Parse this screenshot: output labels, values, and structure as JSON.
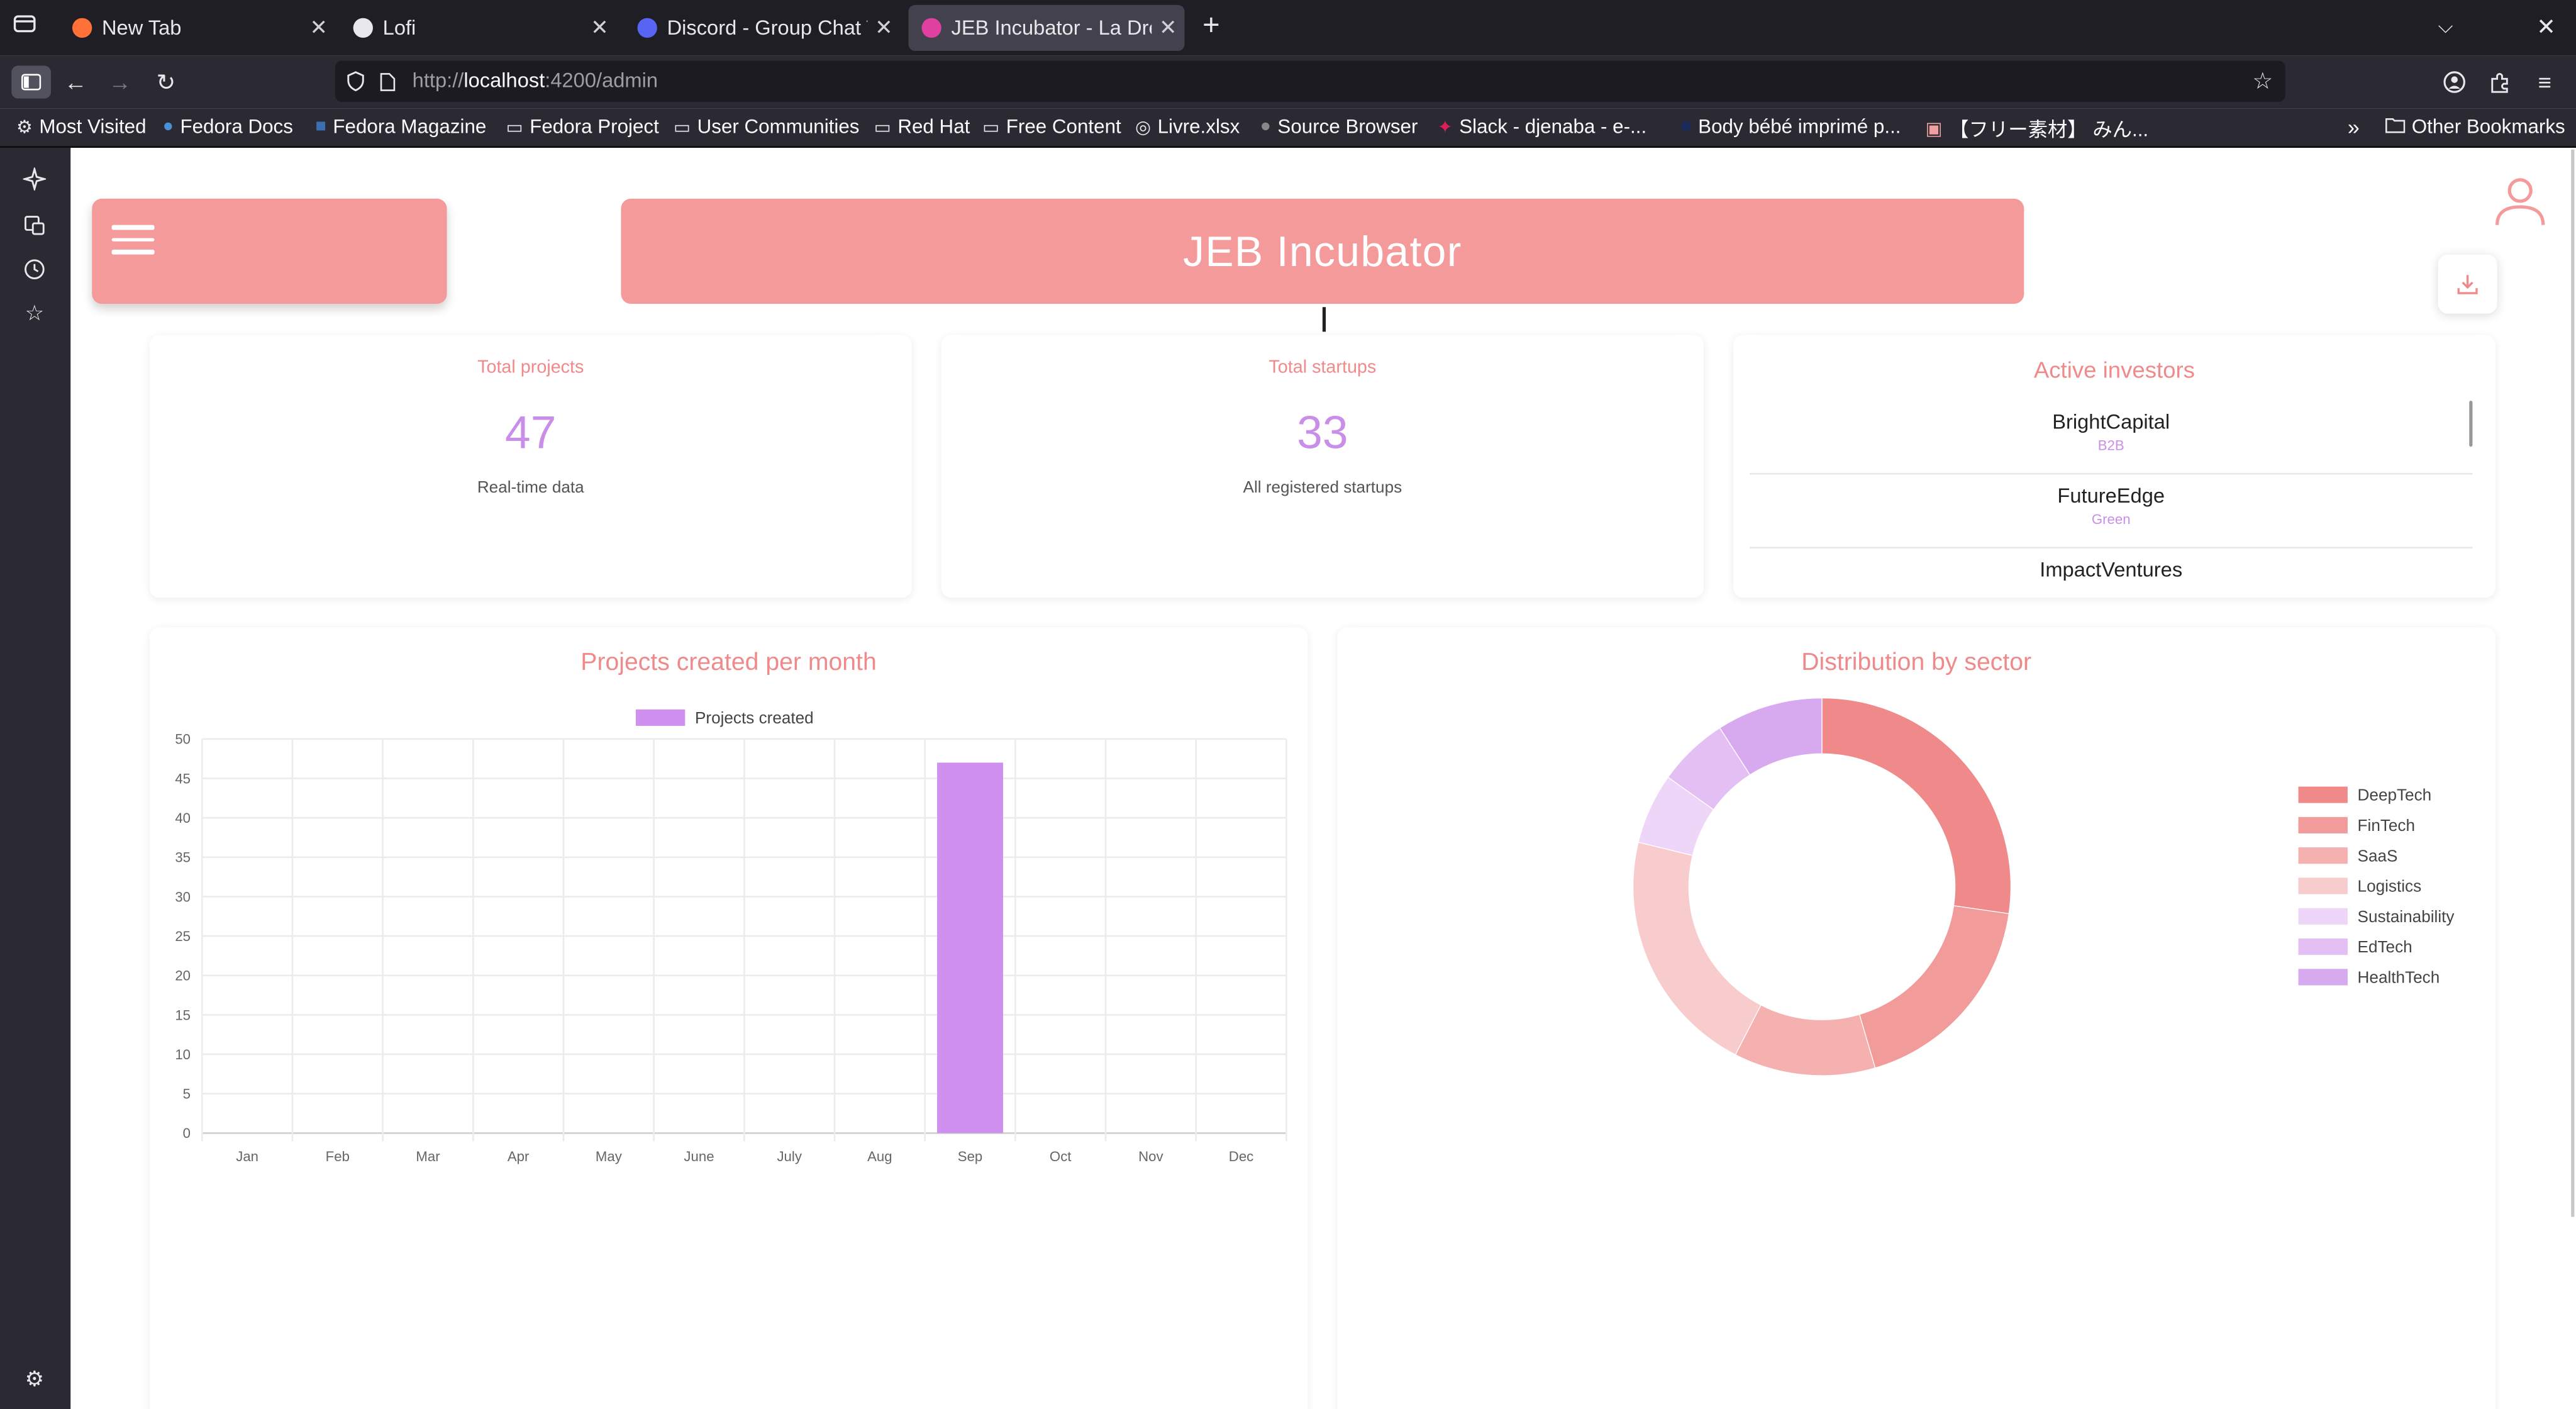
{
  "browser": {
    "tabs": [
      {
        "title": "New Tab",
        "active": false,
        "favicon_color": "#ff7139"
      },
      {
        "title": "Lofi",
        "active": false,
        "favicon_color": "#e8e8ec"
      },
      {
        "title": "Discord - Group Chat Th",
        "active": false,
        "favicon_color": "#5865f2"
      },
      {
        "title": "JEB Incubator - La Drea",
        "active": true,
        "favicon_color": "#e040a0"
      }
    ],
    "url_prefix": "http://",
    "url_host": "localhost",
    "url_rest": ":4200/admin",
    "bookmarks": [
      {
        "label": "Most Visited",
        "icon": "gear-icon"
      },
      {
        "label": "Fedora Docs",
        "icon": "fedora-icon"
      },
      {
        "label": "Fedora Magazine",
        "icon": "fm-icon"
      },
      {
        "label": "Fedora Project",
        "icon": "folder-icon"
      },
      {
        "label": "User Communities",
        "icon": "folder-icon"
      },
      {
        "label": "Red Hat",
        "icon": "folder-icon"
      },
      {
        "label": "Free Content",
        "icon": "folder-icon"
      },
      {
        "label": "Livre.xlsx",
        "icon": "globe-icon"
      },
      {
        "label": "Source Browser",
        "icon": "apple-icon"
      },
      {
        "label": "Slack - djenaba - e-...",
        "icon": "slack-icon"
      },
      {
        "label": "Body bébé imprimé p...",
        "icon": "mt-icon"
      },
      {
        "label": "【フリー素材】 みん...",
        "icon": "image-icon"
      }
    ],
    "other_bookmarks": "Other Bookmarks"
  },
  "header": {
    "title": "JEB Incubator"
  },
  "stats": {
    "total_projects": {
      "label": "Total projects",
      "value": "47",
      "sub": "Real-time data"
    },
    "total_startups": {
      "label": "Total startups",
      "value": "33",
      "sub": "All registered startups"
    }
  },
  "investors": {
    "title": "Active investors",
    "items": [
      {
        "name": "BrightCapital",
        "tag": "B2B"
      },
      {
        "name": "FutureEdge",
        "tag": "Green"
      },
      {
        "name": "ImpactVentures",
        "tag": ""
      }
    ]
  },
  "colors": {
    "accent": "#f49a9a",
    "value": "#c98fe8",
    "title_text": "#f08a8a"
  },
  "chart_data": [
    {
      "type": "bar",
      "title": "Projects created per month",
      "categories": [
        "Jan",
        "Feb",
        "Mar",
        "Apr",
        "May",
        "June",
        "July",
        "Aug",
        "Sep",
        "Oct",
        "Nov",
        "Dec"
      ],
      "series": [
        {
          "name": "Projects created",
          "values": [
            0,
            0,
            0,
            0,
            0,
            0,
            0,
            0,
            47,
            0,
            0,
            0
          ],
          "color": "#cf90ef"
        }
      ],
      "ylim": [
        0,
        50
      ],
      "yticks": [
        0,
        5,
        10,
        15,
        20,
        25,
        30,
        35,
        40,
        45,
        50
      ],
      "grid": true,
      "legend": "top"
    },
    {
      "type": "pie",
      "variant": "doughnut",
      "title": "Distribution by sector",
      "categories": [
        "DeepTech",
        "FinTech",
        "SaaS",
        "Logistics",
        "Sustainability",
        "EdTech",
        "HealthTech"
      ],
      "values": [
        9,
        6,
        4,
        7,
        2,
        2,
        3
      ],
      "colors": [
        "#f08a8a",
        "#f29b9b",
        "#f5b0b0",
        "#f8cccc",
        "#eed6f8",
        "#e4bff4",
        "#d7aaf0"
      ],
      "legend": "right"
    }
  ]
}
